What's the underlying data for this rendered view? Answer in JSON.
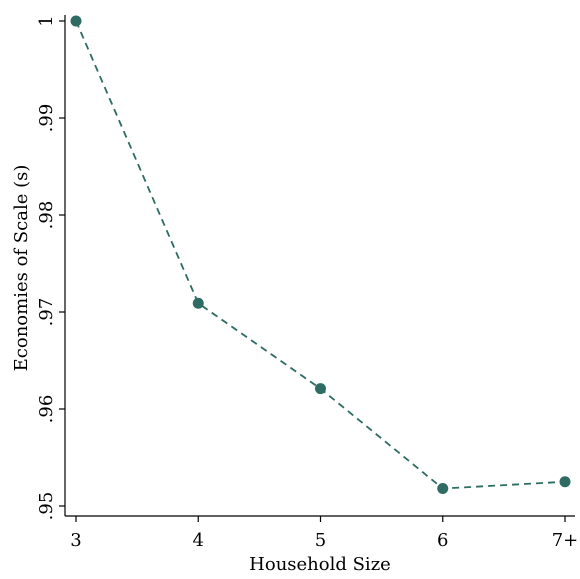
{
  "chart_data": {
    "type": "line",
    "categories": [
      "3",
      "4",
      "5",
      "6",
      "7+"
    ],
    "values": [
      1.0,
      0.9709,
      0.9621,
      0.9518,
      0.9525
    ],
    "xlabel": "Household Size",
    "ylabel": "Economies of Scale (s)",
    "ylim": [
      0.95,
      1.0
    ],
    "yticks": [
      0.95,
      0.96,
      0.97,
      0.98,
      0.99,
      1.0
    ],
    "ytick_labels": [
      ".95",
      ".96",
      ".97",
      ".98",
      ".99",
      "1"
    ],
    "grid": false,
    "legend": "none",
    "line_style": "dashed",
    "colors": {
      "series": "#2e6b63",
      "axis": "#000000"
    }
  }
}
